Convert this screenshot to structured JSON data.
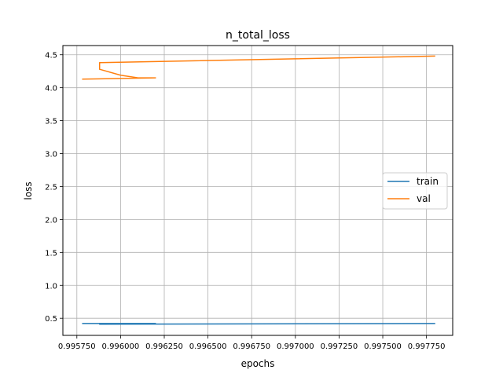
{
  "chart_data": {
    "type": "line",
    "title": "n_total_loss",
    "xlabel": "epochs",
    "ylabel": "loss",
    "xlim": [
      0.99567,
      0.9979
    ],
    "ylim": [
      0.24,
      4.64
    ],
    "x_ticks": [
      0.99575,
      0.996,
      0.99625,
      0.9965,
      0.99675,
      0.997,
      0.99725,
      0.9975,
      0.99775
    ],
    "x_tick_labels": [
      "0.995750",
      "0.996000",
      "0.996250",
      "0.996500",
      "0.996750",
      "0.997000",
      "0.997250",
      "0.997500",
      "0.997750"
    ],
    "y_ticks": [
      0.5,
      1.0,
      1.5,
      2.0,
      2.5,
      3.0,
      3.5,
      4.0,
      4.5
    ],
    "y_tick_labels": [
      "0.5",
      "1.0",
      "1.5",
      "2.0",
      "2.5",
      "3.0",
      "3.5",
      "4.0",
      "4.5"
    ],
    "grid": true,
    "legend_position": "center-right",
    "series": [
      {
        "name": "train",
        "color": "#1f77b4",
        "x": [
          0.99578,
          0.99598,
          0.9962,
          0.99588,
          0.9978
        ],
        "y": [
          0.42,
          0.42,
          0.42,
          0.41,
          0.42
        ]
      },
      {
        "name": "val",
        "color": "#ff7f0e",
        "x": [
          0.99578,
          0.9962,
          0.9961,
          0.996,
          0.99588,
          0.99588,
          0.9978
        ],
        "y": [
          4.13,
          4.15,
          4.15,
          4.19,
          4.28,
          4.38,
          4.48
        ]
      }
    ]
  }
}
